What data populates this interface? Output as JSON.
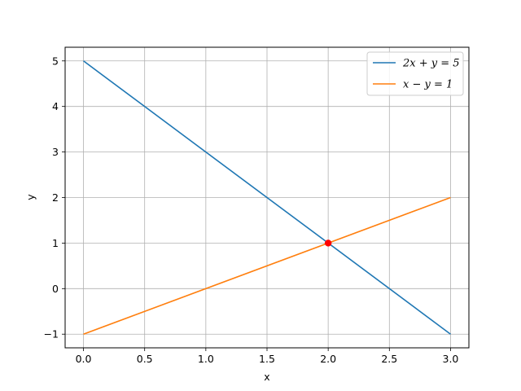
{
  "chart_data": {
    "type": "line",
    "xlabel": "x",
    "ylabel": "y",
    "xlim": [
      -0.15,
      3.15
    ],
    "ylim": [
      -1.3,
      5.3
    ],
    "xticks": [
      0.0,
      0.5,
      1.0,
      1.5,
      2.0,
      2.5,
      3.0
    ],
    "xtick_labels": [
      "0.0",
      "0.5",
      "1.0",
      "1.5",
      "2.0",
      "2.5",
      "3.0"
    ],
    "yticks": [
      -1,
      0,
      1,
      2,
      3,
      4,
      5
    ],
    "ytick_labels": [
      "−1",
      "0",
      "1",
      "2",
      "3",
      "4",
      "5"
    ],
    "grid": true,
    "legend_position": "top-right",
    "series": [
      {
        "name": "2x + y = 5",
        "color": "#1f77b4",
        "x": [
          0,
          3
        ],
        "y": [
          5,
          -1
        ]
      },
      {
        "name": "x − y = 1",
        "color": "#ff7f0e",
        "x": [
          0,
          3
        ],
        "y": [
          -1,
          2
        ]
      }
    ],
    "points": [
      {
        "x": 2,
        "y": 1,
        "color": "#ff0000"
      }
    ]
  }
}
